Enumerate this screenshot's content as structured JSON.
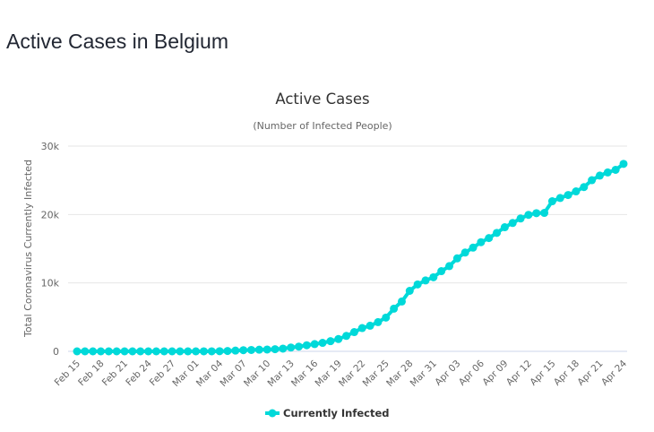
{
  "page": {
    "title": "Active Cases in Belgium"
  },
  "chart_data": {
    "type": "line",
    "title": "Active Cases",
    "subtitle": "(Number of Infected People)",
    "xlabel": "",
    "ylabel": "Total Coronavirus Currently Infected",
    "ylim": [
      0,
      30000
    ],
    "yticks": [
      0,
      10000,
      20000,
      30000
    ],
    "ytick_labels": [
      "0",
      "10k",
      "20k",
      "30k"
    ],
    "grid": true,
    "legend_position": "bottom-center",
    "x": [
      "Feb 15",
      "Feb 16",
      "Feb 17",
      "Feb 18",
      "Feb 19",
      "Feb 20",
      "Feb 21",
      "Feb 22",
      "Feb 23",
      "Feb 24",
      "Feb 25",
      "Feb 26",
      "Feb 27",
      "Feb 28",
      "Feb 29",
      "Mar 01",
      "Mar 02",
      "Mar 03",
      "Mar 04",
      "Mar 05",
      "Mar 06",
      "Mar 07",
      "Mar 08",
      "Mar 09",
      "Mar 10",
      "Mar 11",
      "Mar 12",
      "Mar 13",
      "Mar 14",
      "Mar 15",
      "Mar 16",
      "Mar 17",
      "Mar 18",
      "Mar 19",
      "Mar 20",
      "Mar 21",
      "Mar 22",
      "Mar 23",
      "Mar 24",
      "Mar 25",
      "Mar 26",
      "Mar 27",
      "Mar 28",
      "Mar 29",
      "Mar 30",
      "Mar 31",
      "Apr 01",
      "Apr 02",
      "Apr 03",
      "Apr 04",
      "Apr 05",
      "Apr 06",
      "Apr 07",
      "Apr 08",
      "Apr 09",
      "Apr 10",
      "Apr 11",
      "Apr 12",
      "Apr 13",
      "Apr 14",
      "Apr 15",
      "Apr 16",
      "Apr 17",
      "Apr 18",
      "Apr 19",
      "Apr 20",
      "Apr 21",
      "Apr 22",
      "Apr 23",
      "Apr 24"
    ],
    "xtick_labels": [
      "Feb 15",
      "Feb 18",
      "Feb 21",
      "Feb 24",
      "Feb 27",
      "Mar 01",
      "Mar 04",
      "Mar 07",
      "Mar 10",
      "Mar 13",
      "Mar 16",
      "Mar 19",
      "Mar 22",
      "Mar 25",
      "Mar 28",
      "Mar 31",
      "Apr 03",
      "Apr 06",
      "Apr 09",
      "Apr 12",
      "Apr 15",
      "Apr 18",
      "Apr 21",
      "Apr 24"
    ],
    "series": [
      {
        "name": "Currently Infected",
        "color": "#00D9D9",
        "values": [
          0,
          0,
          0,
          0,
          0,
          0,
          0,
          0,
          0,
          0,
          0,
          0,
          0,
          0,
          0,
          0,
          2,
          8,
          23,
          50,
          109,
          169,
          200,
          239,
          267,
          314,
          399,
          559,
          689,
          886,
          1058,
          1243,
          1486,
          1795,
          2257,
          2815,
          3401,
          3743,
          4269,
          4937,
          6235,
          7284,
          8843,
          9779,
          10360,
          10831,
          11719,
          12460,
          13588,
          14440,
          15157,
          15952,
          16555,
          17314,
          18142,
          18762,
          19420,
          19951,
          20199,
          20233,
          21939,
          22416,
          22851,
          23382,
          24006,
          25017,
          25689,
          26150,
          26530,
          27400
        ]
      }
    ]
  }
}
